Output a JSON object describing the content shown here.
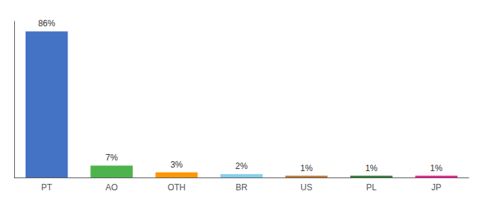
{
  "chart_data": {
    "type": "bar",
    "categories": [
      "PT",
      "AO",
      "OTH",
      "BR",
      "US",
      "PL",
      "JP"
    ],
    "values": [
      86,
      7,
      3,
      2,
      1,
      1,
      1
    ],
    "value_labels": [
      "86%",
      "7%",
      "3%",
      "2%",
      "1%",
      "1%",
      "1%"
    ],
    "colors": [
      "#4472c4",
      "#4db34d",
      "#ff9800",
      "#87ceeb",
      "#c07830",
      "#2e7d32",
      "#e91e8c"
    ],
    "ylim": [
      0,
      92
    ],
    "grid": false,
    "data_labels": true,
    "tick_labels": "x"
  }
}
